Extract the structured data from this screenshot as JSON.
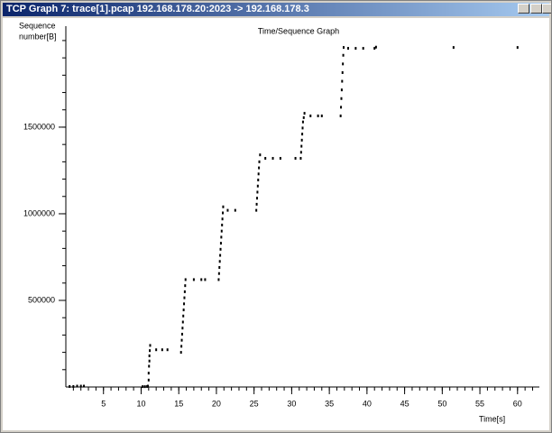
{
  "window": {
    "title": "TCP Graph 7: trace[1].pcap 192.168.178.20:2023 -> 192.168.178.3"
  },
  "chart_data": {
    "type": "scatter",
    "title": "Time/Sequence Graph",
    "ylabel": [
      "Sequence",
      "number[B]"
    ],
    "xlabel": "Time[s]",
    "color": "#000000",
    "xlim": [
      0,
      62.9
    ],
    "ylim": [
      0,
      2083000
    ],
    "xticks": [
      5,
      10,
      15,
      20,
      25,
      30,
      35,
      40,
      45,
      50,
      55,
      60
    ],
    "yticks": [
      500000,
      1000000,
      1500000
    ],
    "x": [
      0.5,
      1.0,
      1.5,
      2.0,
      2.4,
      10.2,
      10.5,
      10.8,
      10.9,
      11.0,
      11.0,
      11.05,
      11.1,
      11.1,
      11.15,
      11.2,
      12.0,
      12.8,
      13.5,
      15.3,
      15.35,
      15.4,
      15.45,
      15.5,
      15.55,
      15.6,
      15.65,
      15.7,
      15.75,
      15.8,
      15.85,
      15.9,
      17.0,
      18.0,
      18.5,
      20.3,
      20.35,
      20.4,
      20.45,
      20.5,
      20.55,
      20.6,
      20.65,
      20.7,
      20.75,
      20.8,
      20.85,
      20.9,
      21.5,
      22.5,
      25.3,
      25.35,
      25.4,
      25.45,
      25.5,
      25.55,
      25.6,
      25.65,
      25.7,
      25.8,
      26.5,
      27.5,
      28.5,
      30.5,
      31.2,
      31.25,
      31.3,
      31.35,
      31.4,
      31.45,
      31.5,
      31.6,
      31.7,
      32.5,
      33.5,
      34.0,
      36.5,
      36.55,
      36.6,
      36.65,
      36.7,
      36.75,
      36.8,
      36.85,
      36.9,
      37.5,
      38.5,
      39.5,
      41.0,
      41.2,
      51.5,
      60.0
    ],
    "values": [
      3000,
      3000,
      5000,
      5000,
      5000,
      2000,
      2000,
      3000,
      5000,
      40000,
      80000,
      120000,
      150000,
      180000,
      210000,
      240000,
      215000,
      215000,
      215000,
      200000,
      235000,
      270000,
      305000,
      340000,
      375000,
      410000,
      445000,
      480000,
      515000,
      550000,
      585000,
      620000,
      620000,
      620000,
      620000,
      620000,
      655000,
      690000,
      725000,
      760000,
      795000,
      830000,
      865000,
      900000,
      935000,
      970000,
      1005000,
      1040000,
      1020000,
      1020000,
      1020000,
      1055000,
      1090000,
      1125000,
      1160000,
      1195000,
      1230000,
      1265000,
      1300000,
      1340000,
      1320000,
      1320000,
      1320000,
      1320000,
      1320000,
      1355000,
      1390000,
      1425000,
      1460000,
      1495000,
      1530000,
      1555000,
      1580000,
      1565000,
      1565000,
      1565000,
      1565000,
      1615000,
      1665000,
      1715000,
      1765000,
      1815000,
      1865000,
      1915000,
      1960000,
      1955000,
      1955000,
      1955000,
      1955000,
      1962000,
      1960000,
      1960000
    ]
  }
}
